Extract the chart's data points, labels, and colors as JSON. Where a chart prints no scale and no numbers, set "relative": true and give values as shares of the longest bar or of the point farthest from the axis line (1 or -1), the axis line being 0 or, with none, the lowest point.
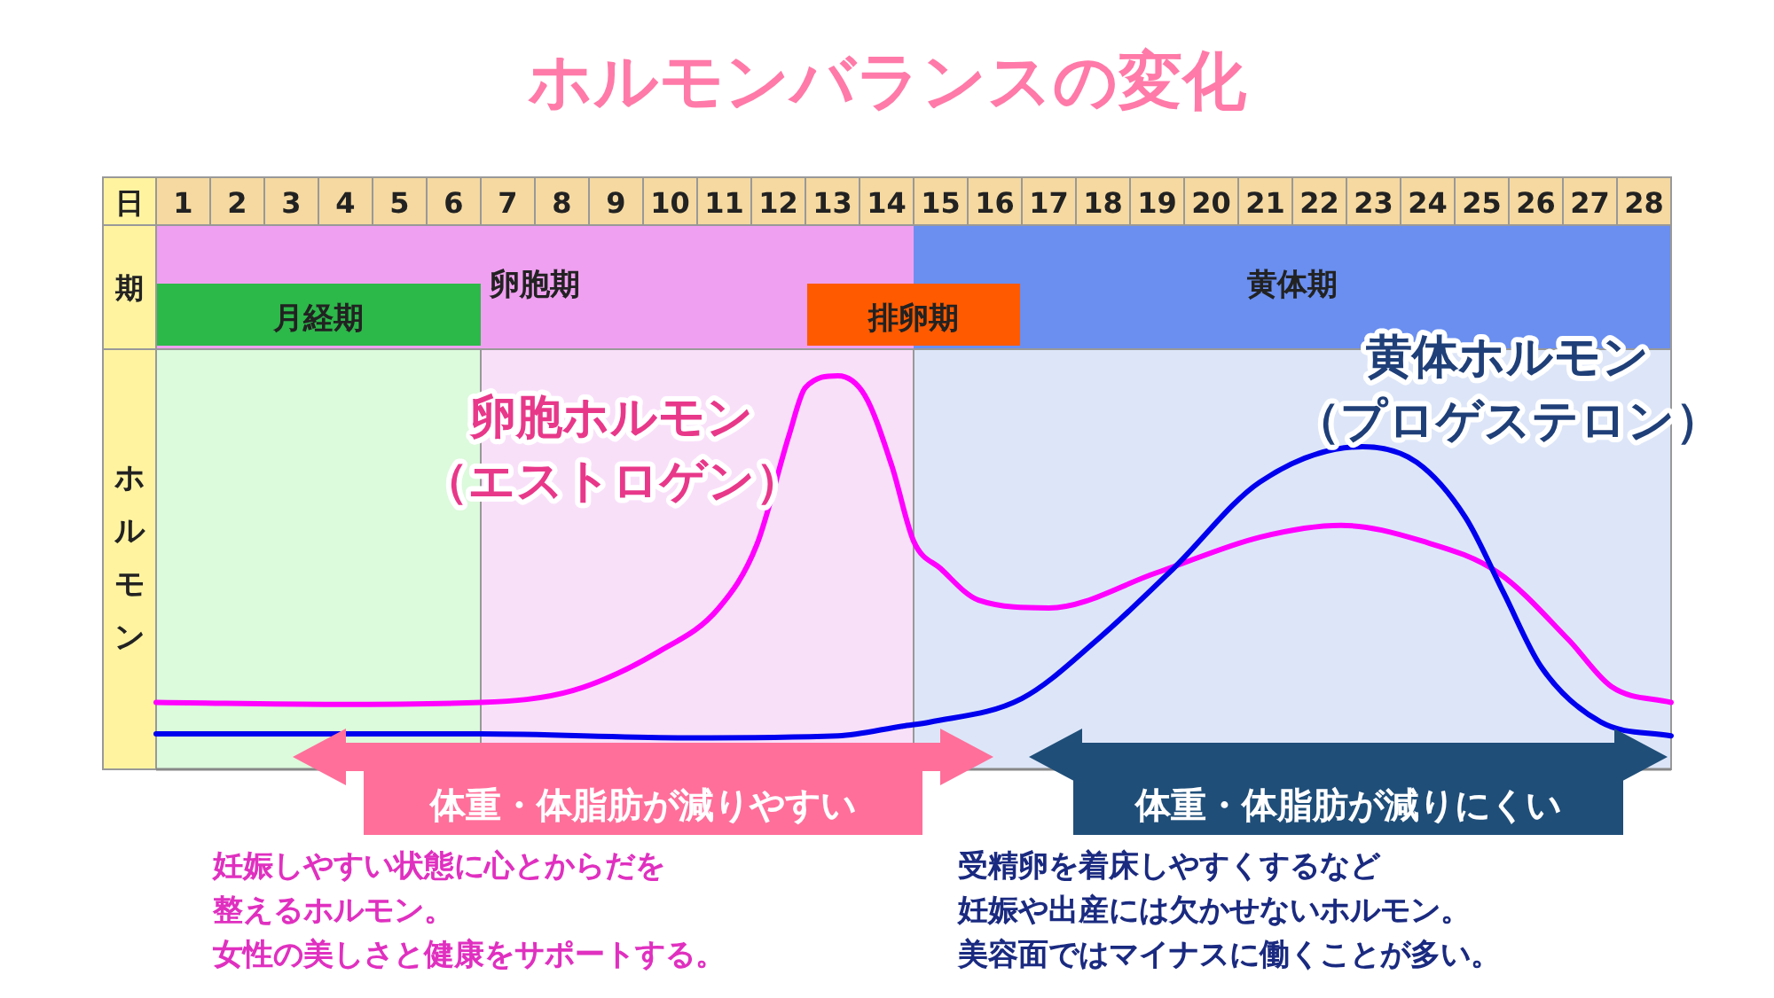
{
  "chart_data": {
    "type": "line",
    "title": "ホルモンバランスの変化",
    "xlabel": "日",
    "ylabel": "ホルモン",
    "relative": true,
    "legend": false,
    "marker": "none",
    "line_style": "solid",
    "xlim": [
      0.5,
      28.5
    ],
    "xticks": [
      1,
      2,
      3,
      4,
      5,
      6,
      7,
      8,
      9,
      10,
      11,
      12,
      13,
      14,
      15,
      16,
      17,
      18,
      19,
      20,
      21,
      22,
      23,
      24,
      25,
      26,
      27,
      28
    ],
    "bands": [
      {
        "axis": "x",
        "from": 0.5,
        "to": 14.5,
        "label": "卵胞期",
        "color": "#f9e0f9"
      },
      {
        "axis": "x",
        "from": 0.5,
        "to": 6.5,
        "label": "月経期",
        "color": "#dcfadc"
      },
      {
        "axis": "x",
        "from": 14.5,
        "to": 28.5,
        "label": "黄体期",
        "color": "#dde6f8"
      }
    ],
    "series": [
      {
        "name": "卵胞ホルモン（エストロゲン）",
        "color": "#ff00ff",
        "x": [
          0.5,
          3.8,
          6.5,
          8.2,
          9.8,
          10.9,
          11.6,
          12.2,
          12.5,
          13.1,
          13.6,
          14.1,
          14.5,
          15.0,
          15.7,
          17.0,
          19.0,
          20.9,
          22.4,
          23.9,
          25.3,
          26.6,
          27.4,
          28.5
        ],
        "values": [
          0.17,
          0.165,
          0.17,
          0.2,
          0.3,
          0.41,
          0.57,
          0.85,
          0.97,
          1.0,
          0.95,
          0.77,
          0.58,
          0.51,
          0.43,
          0.41,
          0.5,
          0.59,
          0.62,
          0.58,
          0.5,
          0.33,
          0.21,
          0.17
        ]
      },
      {
        "name": "黄体ホルモン（プロゲステロン）",
        "color": "#0000ee",
        "x": [
          0.5,
          6.5,
          10.3,
          13.1,
          14.3,
          14.8,
          16.5,
          17.9,
          19.3,
          20.9,
          22.8,
          23.8,
          24.7,
          25.4,
          26.1,
          27.2,
          28.5
        ],
        "values": [
          0.09,
          0.09,
          0.08,
          0.085,
          0.11,
          0.12,
          0.18,
          0.33,
          0.51,
          0.73,
          0.82,
          0.78,
          0.64,
          0.45,
          0.26,
          0.12,
          0.085
        ]
      }
    ],
    "annotations": [
      "期",
      "体重・体脂肪が減りやすい",
      "体重・体脂肪が減りにくい",
      "妊娠しやすい状態に心とからだを",
      "整えるホルモン。",
      "女性の美しさと健康をサポートする。",
      "受精卵を着床しやすくするなど",
      "妊娠や出産には欠かせないホルモン。",
      "美容面ではマイナスに働くことが多い。",
      "排卵期"
    ]
  }
}
